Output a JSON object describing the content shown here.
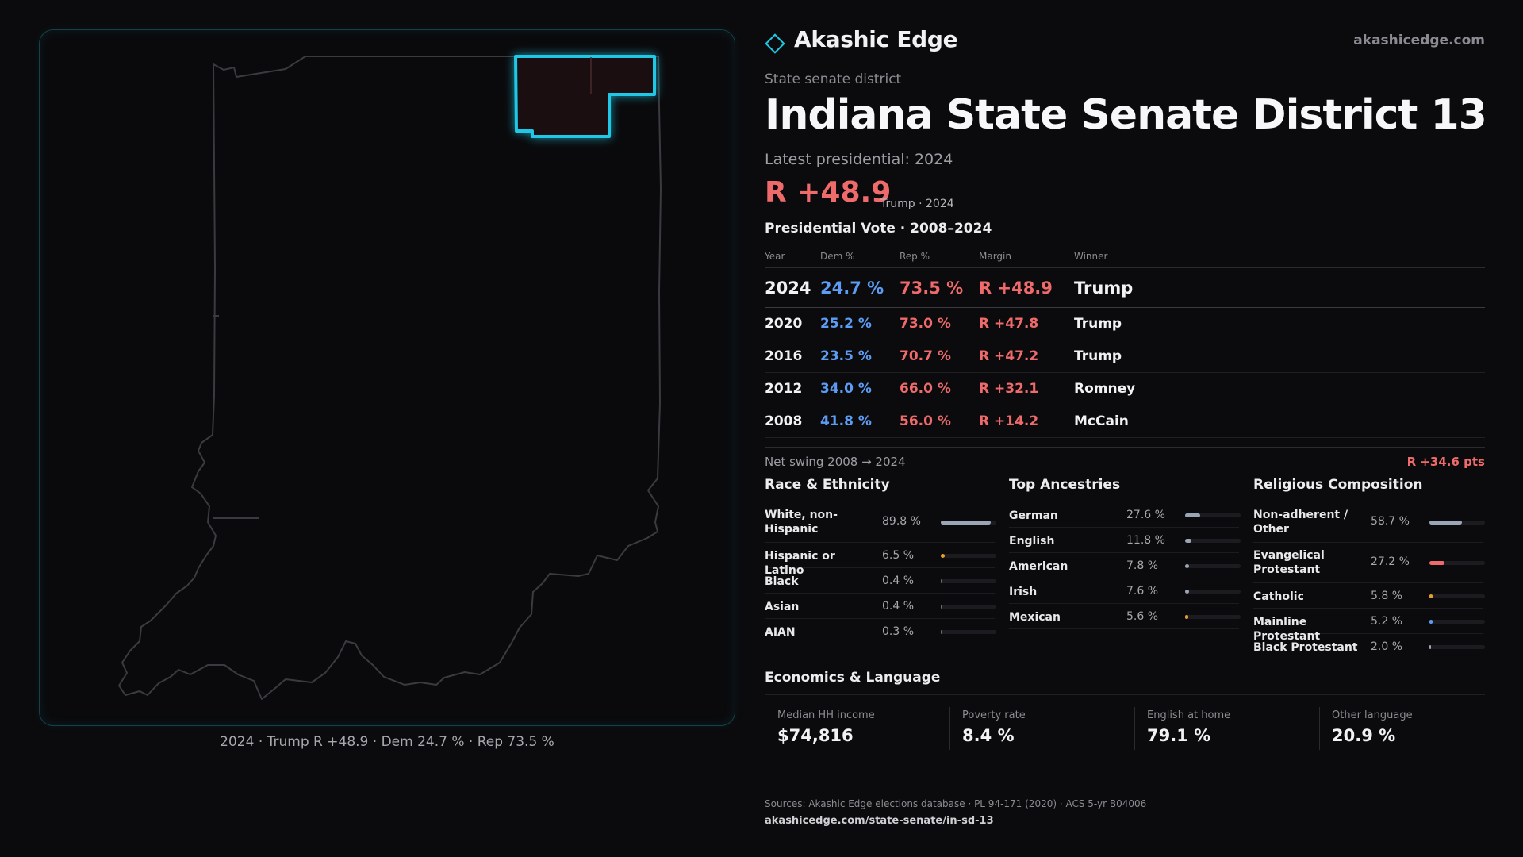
{
  "map": {
    "caption": "2024 · Trump R +48.9 · Dem 24.7 % · Rep 73.5 %",
    "highlight_color": "#1ec8e6",
    "state_outline_color": "#3a3a40"
  },
  "header": {
    "brand": "Akashic Edge",
    "brand_url": "akashicedge.com",
    "logo_icon": "diamond-icon"
  },
  "district": {
    "kind": "State senate district",
    "title": "Indiana State Senate District 13",
    "latest_label": "Latest presidential: 2024",
    "margin": "R +48.9",
    "margin_note": "Trump · 2024"
  },
  "presidential": {
    "title": "Presidential Vote · 2008–2024",
    "columns": [
      "Year",
      "Dem %",
      "Rep %",
      "Margin",
      "Winner"
    ],
    "rows": [
      {
        "year": "2024",
        "dem": "24.7 %",
        "rep": "73.5 %",
        "margin": "R +48.9",
        "winner": "Trump"
      },
      {
        "year": "2020",
        "dem": "25.2 %",
        "rep": "73.0 %",
        "margin": "R +47.8",
        "winner": "Trump"
      },
      {
        "year": "2016",
        "dem": "23.5 %",
        "rep": "70.7 %",
        "margin": "R +47.2",
        "winner": "Trump"
      },
      {
        "year": "2012",
        "dem": "34.0 %",
        "rep": "66.0 %",
        "margin": "R +32.1",
        "winner": "Romney"
      },
      {
        "year": "2008",
        "dem": "41.8 %",
        "rep": "56.0 %",
        "margin": "R +14.2",
        "winner": "McCain"
      }
    ],
    "swing_label": "Net swing 2008 → 2024",
    "swing_value": "R +34.6 pts"
  },
  "race": {
    "title": "Race & Ethnicity",
    "items": [
      {
        "label": "White, non-Hispanic",
        "value": "89.8 %",
        "fraction": 0.898,
        "color": "#9aa6b6"
      },
      {
        "label": "Hispanic or Latino",
        "value": "6.5 %",
        "fraction": 0.065,
        "color": "#e0a030"
      },
      {
        "label": "Black",
        "value": "0.4 %",
        "fraction": 0.004,
        "color": "#6a6a70"
      },
      {
        "label": "Asian",
        "value": "0.4 %",
        "fraction": 0.004,
        "color": "#6a6a70"
      },
      {
        "label": "AIAN",
        "value": "0.3 %",
        "fraction": 0.003,
        "color": "#6a6a70"
      }
    ]
  },
  "ancestry": {
    "title": "Top Ancestries",
    "items": [
      {
        "label": "German",
        "value": "27.6 %",
        "fraction": 0.276,
        "color": "#9aa6b6"
      },
      {
        "label": "English",
        "value": "11.8 %",
        "fraction": 0.118,
        "color": "#9aa6b6"
      },
      {
        "label": "American",
        "value": "7.8 %",
        "fraction": 0.078,
        "color": "#9aa6b6"
      },
      {
        "label": "Irish",
        "value": "7.6 %",
        "fraction": 0.076,
        "color": "#9aa6b6"
      },
      {
        "label": "Mexican",
        "value": "5.6 %",
        "fraction": 0.056,
        "color": "#e0a030"
      }
    ]
  },
  "religion": {
    "title": "Religious Composition",
    "items": [
      {
        "label": "Non-adherent / Other",
        "value": "58.7 %",
        "fraction": 0.587,
        "color": "#9aa6b6"
      },
      {
        "label": "Evangelical Protestant",
        "value": "27.2 %",
        "fraction": 0.272,
        "color": "#ef6a6a"
      },
      {
        "label": "Catholic",
        "value": "5.8 %",
        "fraction": 0.058,
        "color": "#e0a030"
      },
      {
        "label": "Mainline Protestant",
        "value": "5.2 %",
        "fraction": 0.052,
        "color": "#5d9cf4"
      },
      {
        "label": "Black Protestant",
        "value": "2.0 %",
        "fraction": 0.02,
        "color": "#9aa6b6"
      }
    ]
  },
  "economics": {
    "title": "Economics & Language",
    "items": [
      {
        "label": "Median HH income",
        "value": "$74,816"
      },
      {
        "label": "Poverty rate",
        "value": "8.4 %"
      },
      {
        "label": "English at home",
        "value": "79.1 %"
      },
      {
        "label": "Other language",
        "value": "20.9 %"
      }
    ]
  },
  "sources": {
    "text": "Sources: Akashic Edge elections database · PL 94-171 (2020) · ACS 5-yr B04006",
    "url": "akashicedge.com/state-senate/in-sd-13"
  },
  "colors": {
    "dem": "#5d9cf4",
    "rep": "#ef6a6a",
    "accent": "#1ec8e6"
  }
}
